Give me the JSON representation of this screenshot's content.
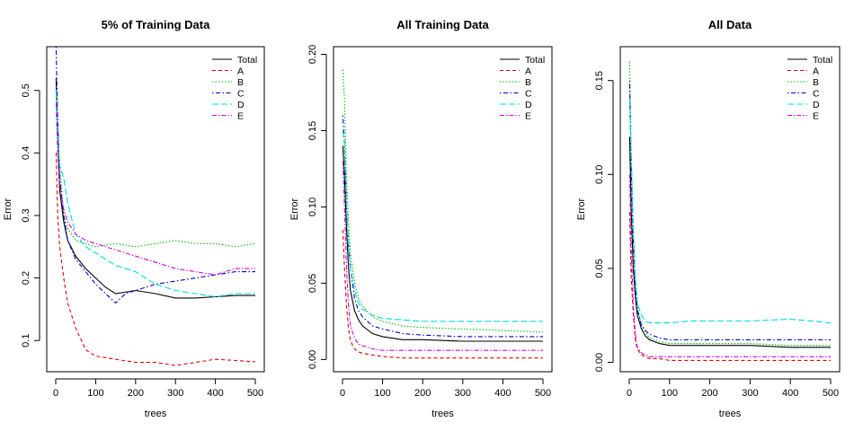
{
  "chart_data": [
    {
      "type": "line",
      "title": "5% of Training Data",
      "xlabel": "trees",
      "ylabel": "Error",
      "xlim": [
        0,
        500
      ],
      "ylim": [
        0.05,
        0.57
      ],
      "xticks": [
        "0",
        "100",
        "200",
        "300",
        "400",
        "500"
      ],
      "yticks": [
        "0.1",
        "0.2",
        "0.3",
        "0.4",
        "0.5"
      ],
      "grid": false,
      "legend_position": "top-right",
      "series": [
        {
          "name": "Total",
          "color": "#000000",
          "dash": "solid",
          "x": [
            1,
            5,
            10,
            20,
            30,
            50,
            75,
            100,
            125,
            150,
            200,
            250,
            300,
            350,
            400,
            450,
            500
          ],
          "y": [
            0.52,
            0.42,
            0.34,
            0.29,
            0.26,
            0.235,
            0.215,
            0.2,
            0.185,
            0.175,
            0.18,
            0.175,
            0.168,
            0.168,
            0.17,
            0.172,
            0.172
          ]
        },
        {
          "name": "A",
          "color": "#DF0000",
          "dash": "dashed",
          "x": [
            1,
            5,
            10,
            20,
            30,
            50,
            75,
            100,
            150,
            200,
            250,
            300,
            350,
            400,
            450,
            500
          ],
          "y": [
            0.4,
            0.3,
            0.25,
            0.2,
            0.16,
            0.12,
            0.085,
            0.075,
            0.07,
            0.065,
            0.065,
            0.06,
            0.065,
            0.07,
            0.068,
            0.066
          ]
        },
        {
          "name": "B",
          "color": "#00BB00",
          "dash": "dotted",
          "x": [
            1,
            5,
            10,
            20,
            30,
            50,
            75,
            100,
            150,
            200,
            250,
            300,
            350,
            400,
            450,
            500
          ],
          "y": [
            0.5,
            0.45,
            0.38,
            0.3,
            0.28,
            0.26,
            0.255,
            0.25,
            0.255,
            0.25,
            0.255,
            0.26,
            0.255,
            0.255,
            0.25,
            0.255
          ]
        },
        {
          "name": "C",
          "color": "#0000CC",
          "dash": "dotdash",
          "x": [
            1,
            5,
            10,
            20,
            30,
            50,
            75,
            100,
            125,
            150,
            175,
            200,
            250,
            300,
            350,
            400,
            450,
            500
          ],
          "y": [
            0.57,
            0.45,
            0.36,
            0.3,
            0.26,
            0.23,
            0.21,
            0.19,
            0.175,
            0.16,
            0.175,
            0.18,
            0.19,
            0.195,
            0.2,
            0.205,
            0.21,
            0.21
          ]
        },
        {
          "name": "D",
          "color": "#00DDDD",
          "dash": "longdash",
          "x": [
            1,
            5,
            10,
            20,
            30,
            50,
            75,
            100,
            150,
            200,
            250,
            300,
            350,
            400,
            450,
            500
          ],
          "y": [
            0.5,
            0.42,
            0.38,
            0.36,
            0.32,
            0.27,
            0.25,
            0.24,
            0.22,
            0.21,
            0.19,
            0.18,
            0.175,
            0.17,
            0.175,
            0.175
          ]
        },
        {
          "name": "E",
          "color": "#DD00DD",
          "dash": "twodash",
          "x": [
            1,
            5,
            10,
            20,
            30,
            50,
            75,
            100,
            150,
            200,
            250,
            300,
            350,
            400,
            450,
            500
          ],
          "y": [
            0.48,
            0.4,
            0.35,
            0.31,
            0.29,
            0.27,
            0.26,
            0.255,
            0.245,
            0.235,
            0.225,
            0.215,
            0.21,
            0.205,
            0.215,
            0.215
          ]
        }
      ]
    },
    {
      "type": "line",
      "title": "All Training Data",
      "xlabel": "trees",
      "ylabel": "Error",
      "xlim": [
        0,
        500
      ],
      "ylim": [
        -0.008,
        0.205
      ],
      "xticks": [
        "0",
        "100",
        "200",
        "300",
        "400",
        "500"
      ],
      "yticks": [
        "0.00",
        "0.05",
        "0.10",
        "0.15",
        "0.20"
      ],
      "grid": false,
      "legend_position": "top-right",
      "series": [
        {
          "name": "Total",
          "color": "#000000",
          "dash": "solid",
          "x": [
            1,
            5,
            10,
            15,
            20,
            30,
            40,
            50,
            75,
            100,
            150,
            200,
            300,
            400,
            500
          ],
          "y": [
            0.14,
            0.12,
            0.085,
            0.06,
            0.045,
            0.032,
            0.026,
            0.022,
            0.017,
            0.015,
            0.013,
            0.013,
            0.012,
            0.012,
            0.012
          ]
        },
        {
          "name": "A",
          "color": "#DF0000",
          "dash": "dashed",
          "x": [
            1,
            5,
            10,
            15,
            20,
            30,
            40,
            50,
            75,
            100,
            150,
            200,
            300,
            400,
            500
          ],
          "y": [
            0.085,
            0.06,
            0.035,
            0.02,
            0.012,
            0.007,
            0.005,
            0.004,
            0.003,
            0.002,
            0.001,
            0.001,
            0.001,
            0.001,
            0.001
          ]
        },
        {
          "name": "B",
          "color": "#00BB00",
          "dash": "dotted",
          "x": [
            1,
            5,
            10,
            15,
            20,
            30,
            40,
            50,
            75,
            100,
            150,
            200,
            300,
            400,
            500
          ],
          "y": [
            0.19,
            0.17,
            0.12,
            0.09,
            0.07,
            0.05,
            0.04,
            0.035,
            0.028,
            0.025,
            0.022,
            0.021,
            0.02,
            0.019,
            0.018
          ]
        },
        {
          "name": "C",
          "color": "#0000CC",
          "dash": "dotdash",
          "x": [
            1,
            5,
            10,
            15,
            20,
            30,
            40,
            50,
            75,
            100,
            150,
            200,
            300,
            400,
            500
          ],
          "y": [
            0.16,
            0.14,
            0.1,
            0.075,
            0.06,
            0.04,
            0.032,
            0.028,
            0.022,
            0.02,
            0.017,
            0.016,
            0.015,
            0.015,
            0.015
          ]
        },
        {
          "name": "D",
          "color": "#00DDDD",
          "dash": "longdash",
          "x": [
            1,
            5,
            10,
            15,
            20,
            30,
            40,
            50,
            75,
            100,
            150,
            200,
            300,
            400,
            500
          ],
          "y": [
            0.15,
            0.14,
            0.1,
            0.075,
            0.06,
            0.045,
            0.037,
            0.033,
            0.029,
            0.027,
            0.026,
            0.025,
            0.025,
            0.025,
            0.025
          ]
        },
        {
          "name": "E",
          "color": "#DD00DD",
          "dash": "twodash",
          "x": [
            1,
            5,
            10,
            15,
            20,
            30,
            40,
            50,
            75,
            100,
            150,
            200,
            300,
            400,
            500
          ],
          "y": [
            0.13,
            0.1,
            0.06,
            0.035,
            0.022,
            0.014,
            0.01,
            0.009,
            0.007,
            0.006,
            0.006,
            0.006,
            0.006,
            0.006,
            0.006
          ]
        }
      ]
    },
    {
      "type": "line",
      "title": "All Data",
      "xlabel": "trees",
      "ylabel": "Error",
      "xlim": [
        0,
        500
      ],
      "ylim": [
        -0.005,
        0.168
      ],
      "xticks": [
        "0",
        "100",
        "200",
        "300",
        "400",
        "500"
      ],
      "yticks": [
        "0.00",
        "0.05",
        "0.10",
        "0.15"
      ],
      "grid": false,
      "legend_position": "top-right",
      "series": [
        {
          "name": "Total",
          "color": "#000000",
          "dash": "solid",
          "x": [
            1,
            5,
            10,
            15,
            20,
            30,
            40,
            50,
            75,
            100,
            150,
            200,
            300,
            400,
            500
          ],
          "y": [
            0.12,
            0.08,
            0.05,
            0.035,
            0.025,
            0.018,
            0.014,
            0.012,
            0.01,
            0.009,
            0.009,
            0.009,
            0.009,
            0.008,
            0.008
          ]
        },
        {
          "name": "A",
          "color": "#DF0000",
          "dash": "dashed",
          "x": [
            1,
            5,
            10,
            15,
            20,
            30,
            40,
            50,
            75,
            100,
            150,
            200,
            300,
            400,
            500
          ],
          "y": [
            0.08,
            0.045,
            0.025,
            0.012,
            0.007,
            0.004,
            0.003,
            0.002,
            0.002,
            0.001,
            0.001,
            0.001,
            0.001,
            0.001,
            0.001
          ]
        },
        {
          "name": "B",
          "color": "#00BB00",
          "dash": "dotted",
          "x": [
            1,
            5,
            10,
            15,
            20,
            30,
            40,
            50,
            75,
            100,
            150,
            200,
            300,
            400,
            500
          ],
          "y": [
            0.16,
            0.11,
            0.07,
            0.045,
            0.03,
            0.02,
            0.016,
            0.013,
            0.011,
            0.01,
            0.01,
            0.01,
            0.01,
            0.009,
            0.009
          ]
        },
        {
          "name": "C",
          "color": "#0000CC",
          "dash": "dotdash",
          "x": [
            1,
            5,
            10,
            15,
            20,
            30,
            40,
            50,
            75,
            100,
            150,
            200,
            300,
            400,
            500
          ],
          "y": [
            0.15,
            0.1,
            0.065,
            0.04,
            0.028,
            0.02,
            0.017,
            0.015,
            0.013,
            0.012,
            0.012,
            0.012,
            0.012,
            0.012,
            0.012
          ]
        },
        {
          "name": "D",
          "color": "#00DDDD",
          "dash": "longdash",
          "x": [
            1,
            5,
            10,
            15,
            20,
            30,
            40,
            50,
            75,
            100,
            150,
            200,
            300,
            400,
            500
          ],
          "y": [
            0.14,
            0.11,
            0.07,
            0.045,
            0.032,
            0.025,
            0.022,
            0.021,
            0.021,
            0.021,
            0.022,
            0.022,
            0.022,
            0.023,
            0.021
          ]
        },
        {
          "name": "E",
          "color": "#DD00DD",
          "dash": "twodash",
          "x": [
            1,
            5,
            10,
            15,
            20,
            30,
            40,
            50,
            75,
            100,
            150,
            200,
            300,
            400,
            500
          ],
          "y": [
            0.1,
            0.06,
            0.03,
            0.015,
            0.008,
            0.005,
            0.004,
            0.003,
            0.003,
            0.003,
            0.003,
            0.003,
            0.003,
            0.003,
            0.003
          ]
        }
      ]
    }
  ]
}
